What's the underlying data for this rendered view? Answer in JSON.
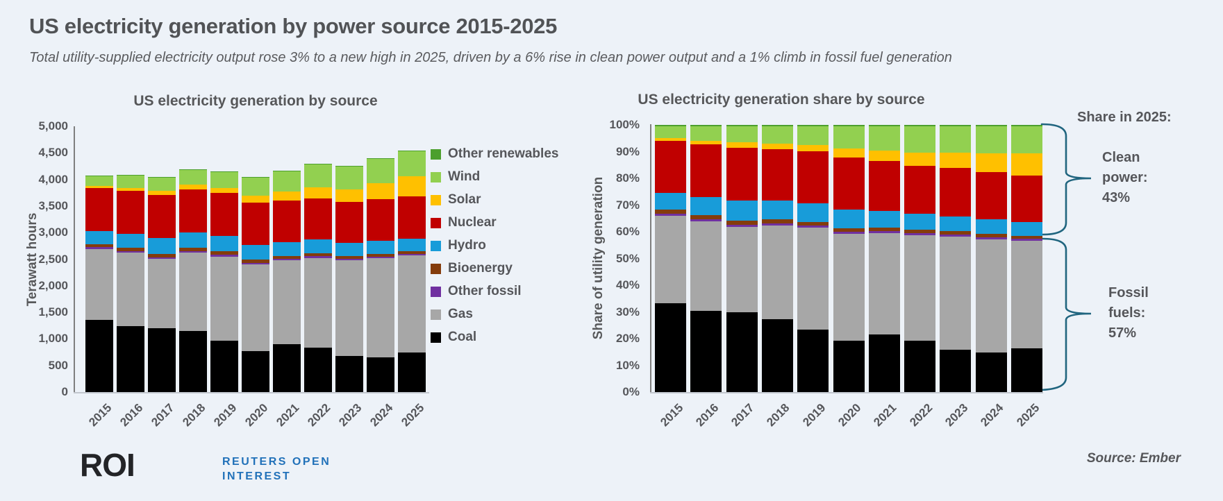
{
  "header": {
    "title": "US electricity generation by power source 2015-2025",
    "subtitle": "Total utility-supplied electricity output rose 3% to a new high in 2025, driven by a 6% rise in clean power output and a 1% climb in fossil fuel generation"
  },
  "annotations": {
    "share_in": "Share in 2025:",
    "clean_lines": [
      "Clean",
      "power:",
      "43%"
    ],
    "fossil_lines": [
      "Fossil",
      "fuels:",
      "57%"
    ],
    "brace_color": "#20657F"
  },
  "footer": {
    "logo": "ROI",
    "logo_line1": "REUTERS OPEN",
    "logo_line2": "INTEREST",
    "source": "Source: Ember"
  },
  "colors": {
    "background": "#EDF2F8",
    "text": "#58595B",
    "coal": "#000000",
    "gas": "#A7A7A7",
    "other_fossil": "#7030A0",
    "bioenergy": "#843C0C",
    "hydro": "#189CD9",
    "nuclear": "#C00000",
    "solar": "#FFC000",
    "wind": "#92D050",
    "other_renewables": "#4C9F2D",
    "reuters_blue": "#2171B9"
  },
  "chart_data": [
    {
      "id": "generation",
      "type": "bar",
      "stacked": true,
      "title": "US electricity generation by source",
      "xlabel": "",
      "ylabel": "Terawatt hours",
      "ylim": [
        0,
        5000
      ],
      "ytick_step": 500,
      "grid": false,
      "legend_position": "right",
      "legend_order": "top-is-last-series",
      "categories": [
        "2015",
        "2016",
        "2017",
        "2018",
        "2019",
        "2020",
        "2021",
        "2022",
        "2023",
        "2024",
        "2025"
      ],
      "series_order": "bottom-to-top",
      "series": [
        {
          "name": "Coal",
          "color": "#000000",
          "values": [
            1352,
            1240,
            1206,
            1150,
            966,
            774,
            898,
            831,
            675,
            653,
            740
          ]
        },
        {
          "name": "Gas",
          "color": "#A7A7A7",
          "values": [
            1335,
            1378,
            1296,
            1468,
            1586,
            1624,
            1579,
            1689,
            1802,
            1865,
            1830
          ]
        },
        {
          "name": "Other fossil",
          "color": "#7030A0",
          "values": [
            35,
            33,
            33,
            34,
            34,
            33,
            33,
            33,
            32,
            32,
            30
          ]
        },
        {
          "name": "Bioenergy",
          "color": "#843C0C",
          "values": [
            64,
            63,
            64,
            63,
            58,
            56,
            55,
            54,
            52,
            51,
            50
          ]
        },
        {
          "name": "Hydro",
          "color": "#189CD9",
          "values": [
            249,
            268,
            300,
            292,
            288,
            285,
            260,
            262,
            240,
            243,
            240
          ]
        },
        {
          "name": "Nuclear",
          "color": "#C00000",
          "values": [
            797,
            806,
            805,
            807,
            809,
            790,
            778,
            772,
            775,
            782,
            790
          ]
        },
        {
          "name": "Solar",
          "color": "#FFC000",
          "values": [
            39,
            55,
            77,
            85,
            98,
            132,
            164,
            205,
            238,
            303,
            375
          ]
        },
        {
          "name": "Wind",
          "color": "#92D050",
          "values": [
            190,
            227,
            254,
            273,
            295,
            338,
            378,
            434,
            425,
            453,
            470
          ]
        },
        {
          "name": "Other renewables",
          "color": "#4C9F2D",
          "values": [
            17,
            17,
            18,
            18,
            18,
            18,
            18,
            19,
            19,
            19,
            20
          ]
        }
      ]
    },
    {
      "id": "share",
      "type": "bar",
      "stacked": true,
      "normalized_percent": true,
      "title": "US electricity generation share by source",
      "xlabel": "",
      "ylabel": "Share of utility generation",
      "ylim": [
        0,
        100
      ],
      "ytick_step": 10,
      "grid": false,
      "categories": [
        "2015",
        "2016",
        "2017",
        "2018",
        "2019",
        "2020",
        "2021",
        "2022",
        "2023",
        "2024",
        "2025"
      ],
      "series_order": "bottom-to-top",
      "series": [
        {
          "name": "Coal",
          "color": "#000000",
          "values": [
            33.2,
            30.3,
            29.8,
            27.4,
            23.3,
            19.1,
            21.6,
            19.3,
            15.9,
            14.8,
            16.3
          ]
        },
        {
          "name": "Gas",
          "color": "#A7A7A7",
          "values": [
            32.7,
            33.7,
            32.0,
            35.0,
            38.2,
            40.1,
            37.9,
            39.3,
            42.3,
            42.4,
            40.3
          ]
        },
        {
          "name": "Other fossil",
          "color": "#7030A0",
          "values": [
            0.9,
            0.8,
            0.8,
            0.8,
            0.8,
            0.8,
            0.8,
            0.8,
            0.8,
            0.7,
            0.7
          ]
        },
        {
          "name": "Bioenergy",
          "color": "#843C0C",
          "values": [
            1.6,
            1.5,
            1.6,
            1.5,
            1.4,
            1.4,
            1.3,
            1.3,
            1.2,
            1.2,
            1.1
          ]
        },
        {
          "name": "Hydro",
          "color": "#189CD9",
          "values": [
            6.1,
            6.6,
            7.4,
            7.0,
            6.9,
            7.0,
            6.2,
            6.1,
            5.6,
            5.5,
            5.3
          ]
        },
        {
          "name": "Nuclear",
          "color": "#C00000",
          "values": [
            19.5,
            19.7,
            19.9,
            19.3,
            19.5,
            19.5,
            18.7,
            18.0,
            18.2,
            17.8,
            17.4
          ]
        },
        {
          "name": "Solar",
          "color": "#FFC000",
          "values": [
            1.0,
            1.3,
            1.9,
            2.0,
            2.4,
            3.3,
            3.9,
            4.8,
            5.6,
            6.9,
            8.3
          ]
        },
        {
          "name": "Wind",
          "color": "#92D050",
          "values": [
            4.6,
            5.6,
            6.2,
            6.6,
            7.1,
            8.4,
            9.1,
            10.0,
            10.0,
            10.3,
            10.2
          ]
        },
        {
          "name": "Other renewables",
          "color": "#4C9F2D",
          "values": [
            0.4,
            0.5,
            0.4,
            0.4,
            0.4,
            0.4,
            0.5,
            0.4,
            0.4,
            0.4,
            0.4
          ]
        }
      ],
      "callouts": {
        "clean_power_2025_pct": 43,
        "fossil_fuels_2025_pct": 57
      }
    }
  ]
}
